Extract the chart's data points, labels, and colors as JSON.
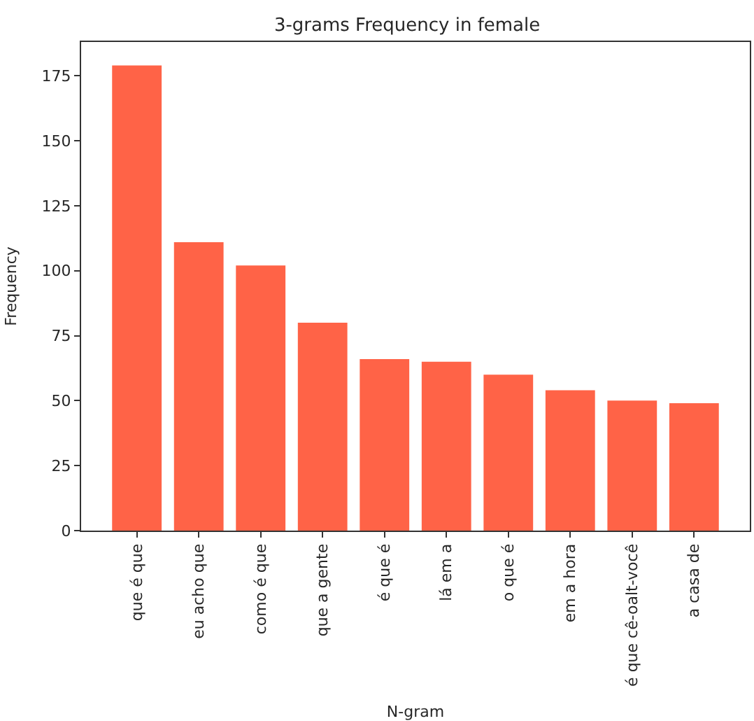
{
  "chart_data": {
    "type": "bar",
    "title": "3-grams Frequency in female",
    "xlabel": "N-gram",
    "ylabel": "Frequency",
    "categories": [
      "que é que",
      "eu acho que",
      "como é que",
      "que a gente",
      "é que é",
      "lá em a",
      "o que é",
      "em a hora",
      "é que cê-oalt-você",
      "a casa de"
    ],
    "values": [
      179,
      111,
      102,
      80,
      66,
      65,
      60,
      54,
      50,
      49
    ],
    "color": "#ff6347",
    "ylim": [
      0,
      188
    ],
    "yticks": [
      0,
      25,
      50,
      75,
      100,
      125,
      150,
      175
    ]
  }
}
